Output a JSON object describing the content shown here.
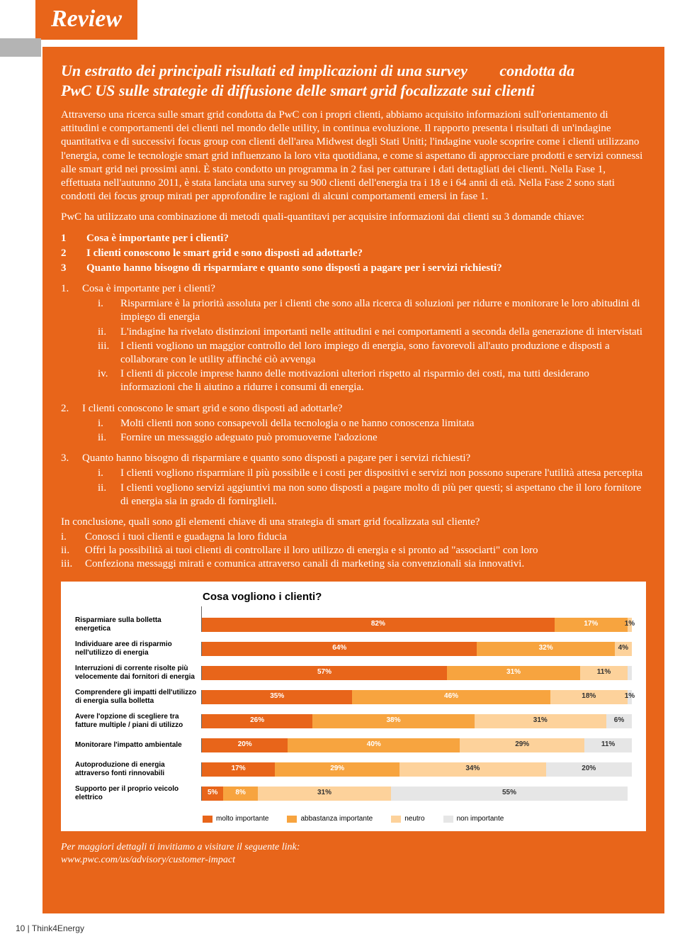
{
  "header": {
    "review": "Review"
  },
  "title": {
    "line1_left": "Un estratto dei principali risultati ed implicazioni di una survey",
    "line1_right": "condotta da",
    "line2": "PwC US sulle strategie di diffusione delle smart grid focalizzate sui clienti"
  },
  "intro1": "Attraverso una ricerca sulle smart grid condotta da PwC con i propri clienti, abbiamo acquisito informazioni sull'orientamento di attitudini e comportamenti dei clienti nel mondo delle utility, in continua evoluzione. Il rapporto presenta i risultati di un'indagine quantitativa e di successivi focus group con clienti dell'area Midwest degli Stati Uniti; l'indagine vuole scoprire come i clienti utilizzano l'energia, come le tecnologie smart grid influenzano la loro vita quotidiana, e come si aspettano di approcciare prodotti e servizi connessi alle smart grid nei prossimi anni. È stato condotto un programma in 2 fasi per catturare i dati dettagliati dei clienti. Nella Fase 1, effettuata nell'autunno 2011, è stata lanciata una survey su 900 clienti dell'energia tra i 18 e i 64 anni di età. Nella Fase 2 sono stati condotti dei focus group mirati per approfondire le ragioni di alcuni comportamenti emersi in fase 1.",
  "intro2": "PwC ha utilizzato una combinazione di metodi quali-quantitavi per acquisire informazioni dai clienti su 3 domande chiave:",
  "keyq": [
    {
      "n": "1",
      "t": "Cosa è importante per i clienti?"
    },
    {
      "n": "2",
      "t": "I clienti conoscono le smart grid e sono disposti ad adottarle?"
    },
    {
      "n": "3",
      "t": "Quanto hanno bisogno di risparmiare e quanto sono disposti a pagare per i servizi richiesti?"
    }
  ],
  "sec1": {
    "num": "1.",
    "head": "Cosa è importante per i clienti?",
    "items": [
      {
        "r": "i.",
        "t": "Risparmiare è la priorità assoluta per i clienti che sono alla ricerca di  soluzioni per ridurre e monitorare le loro abitudini di impiego di energia"
      },
      {
        "r": "ii.",
        "t": "L'indagine ha rivelato distinzioni importanti nelle attitudini e nei comportamenti a seconda della generazione di intervistati"
      },
      {
        "r": "iii.",
        "t": "I clienti vogliono un maggior controllo del loro impiego di energia, sono favorevoli all'auto produzione e disposti a collaborare  con le utility affinché ciò avvenga"
      },
      {
        "r": "iv.",
        "t": "I clienti di piccole imprese hanno delle motivazioni ulteriori rispetto al risparmio dei costi, ma tutti desiderano informazioni che li aiutino a ridurre i consumi di energia."
      }
    ]
  },
  "sec2": {
    "num": "2.",
    "head": "I clienti conoscono le smart grid e sono disposti ad adottarle?",
    "items": [
      {
        "r": "i.",
        "t": "Molti clienti non sono consapevoli della tecnologia o ne hanno conoscenza limitata"
      },
      {
        "r": "ii.",
        "t": "Fornire un messaggio adeguato può promuoverne l'adozione"
      }
    ]
  },
  "sec3": {
    "num": "3.",
    "head": "Quanto hanno bisogno di risparmiare e quanto sono disposti a pagare per i servizi richiesti?",
    "items": [
      {
        "r": "i.",
        "t": "I clienti vogliono risparmiare il più possibile e i costi per dispositivi e servizi non possono superare l'utilità attesa percepita"
      },
      {
        "r": "ii.",
        "t": "I clienti vogliono servizi aggiuntivi ma non sono disposti a pagare molto di più per questi; si aspettano che il loro fornitore di energia sia in grado di fornirglieli."
      }
    ]
  },
  "concl": {
    "head": "In conclusione, quali sono gli elementi chiave di una strategia di smart grid focalizzata sul cliente?",
    "items": [
      {
        "r": "i.",
        "t": "Conosci i tuoi clienti e guadagna la loro fiducia"
      },
      {
        "r": "ii.",
        "t": "Offri la possibilità ai tuoi clienti di controllare il loro utilizzo di energia e si pronto ad \"associarti\" con loro"
      },
      {
        "r": "iii.",
        "t": "Confeziona messaggi mirati e comunica attraverso canali di marketing sia convenzionali sia innovativi."
      }
    ]
  },
  "chart": {
    "title": "Cosa vogliono i clienti?",
    "type": "stacked-bar-horizontal",
    "colors": {
      "molto": "#e8651a",
      "abbastanza": "#f7a43f",
      "neutro": "#fdd29b",
      "non": "#e6e6e6",
      "axis": "#666666",
      "bg": "#ffffff"
    },
    "legend": [
      {
        "label": "molto importante",
        "color": "#e8651a"
      },
      {
        "label": "abbastanza importante",
        "color": "#f7a43f"
      },
      {
        "label": "neutro",
        "color": "#fdd29b"
      },
      {
        "label": "non importante",
        "color": "#e6e6e6"
      }
    ],
    "rows": [
      {
        "label": "Risparmiare sulla bolletta energetica",
        "v": [
          82,
          17,
          1,
          0
        ],
        "s": [
          "82%",
          "17%",
          "1%",
          ""
        ]
      },
      {
        "label": "Individuare aree di risparmio nell'utilizzo di energia",
        "v": [
          64,
          32,
          4,
          0
        ],
        "s": [
          "64%",
          "32%",
          "4%",
          ""
        ]
      },
      {
        "label": "Interruzioni di corrente risolte più velocemente dai fornitori di energia",
        "v": [
          57,
          31,
          11,
          1
        ],
        "s": [
          "57%",
          "31%",
          "11%",
          ""
        ]
      },
      {
        "label": "Comprendere gli impatti dell'utilizzo di energia sulla bolletta",
        "v": [
          35,
          46,
          18,
          1
        ],
        "s": [
          "35%",
          "46%",
          "18%",
          "1%"
        ]
      },
      {
        "label": "Avere l'opzione di scegliere tra fatture multiple / piani di utilizzo",
        "v": [
          26,
          38,
          31,
          6
        ],
        "s": [
          "26%",
          "38%",
          "31%",
          "6%"
        ]
      },
      {
        "label": "Monitorare l'impatto ambientale",
        "v": [
          20,
          40,
          29,
          11
        ],
        "s": [
          "20%",
          "40%",
          "29%",
          "11%"
        ]
      },
      {
        "label": "Autoproduzione di energia attraverso fonti rinnovabili",
        "v": [
          17,
          29,
          34,
          20
        ],
        "s": [
          "17%",
          "29%",
          "34%",
          "20%"
        ]
      },
      {
        "label": "Supporto per il proprio veicolo elettrico",
        "v": [
          5,
          8,
          31,
          55
        ],
        "s": [
          "5%",
          "8%",
          "31%",
          "55%"
        ]
      }
    ]
  },
  "linkline1": "Per maggiori dettagli ti invitiamo a visitare il seguente link:",
  "linkline2": "www.pwc.com/us/advisory/customer-impact",
  "footer": "10 | Think4Energy"
}
